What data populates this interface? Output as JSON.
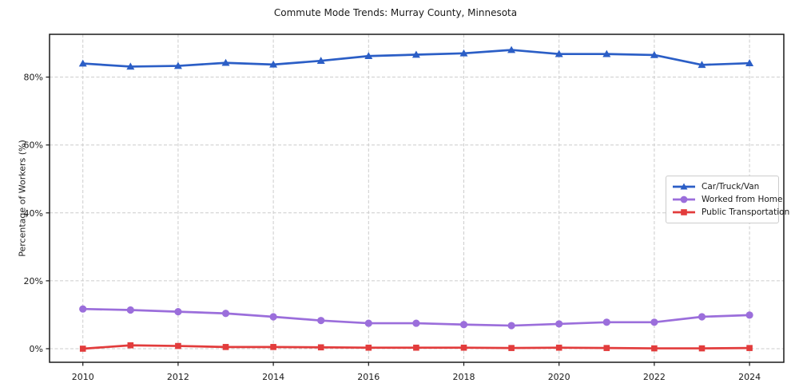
{
  "title": "Commute Mode Trends: Murray County, Minnesota",
  "chart_data": {
    "type": "line",
    "title": "Commute Mode Trends: Murray County, Minnesota",
    "xlabel": "",
    "ylabel": "Percentage of Workers (%)",
    "x": [
      2010,
      2011,
      2012,
      2013,
      2014,
      2015,
      2016,
      2017,
      2018,
      2019,
      2020,
      2021,
      2022,
      2023,
      2024
    ],
    "series": [
      {
        "name": "Car/Truck/Van",
        "color": "#2b5ec6",
        "marker": "triangle",
        "values": [
          84.0,
          83.1,
          83.3,
          84.2,
          83.7,
          84.8,
          86.2,
          86.6,
          87.0,
          88.0,
          86.8,
          86.8,
          86.5,
          83.6,
          84.1
        ]
      },
      {
        "name": "Worked from Home",
        "color": "#9b6edb",
        "marker": "circle",
        "values": [
          11.7,
          11.4,
          10.9,
          10.4,
          9.4,
          8.3,
          7.5,
          7.5,
          7.1,
          6.8,
          7.3,
          7.8,
          7.8,
          9.4,
          9.9
        ]
      },
      {
        "name": "Public Transportation",
        "color": "#e23c3c",
        "marker": "square",
        "values": [
          0.0,
          1.0,
          0.8,
          0.5,
          0.5,
          0.4,
          0.3,
          0.3,
          0.3,
          0.2,
          0.3,
          0.2,
          0.1,
          0.1,
          0.2
        ]
      }
    ],
    "xticks": [
      2010,
      2012,
      2014,
      2016,
      2018,
      2020,
      2022,
      2024
    ],
    "yticks": [
      0,
      20,
      40,
      60,
      80
    ],
    "ytick_labels": [
      "0%",
      "20%",
      "40%",
      "60%",
      "80%"
    ],
    "xlim": [
      2009.3,
      2024.72
    ],
    "ylim": [
      -4.0,
      92.6
    ],
    "grid": true,
    "grid_style": "dashed",
    "grid_color": "#cccccc",
    "frame_color": "#1a1a1a",
    "legend_position": "center-right"
  }
}
